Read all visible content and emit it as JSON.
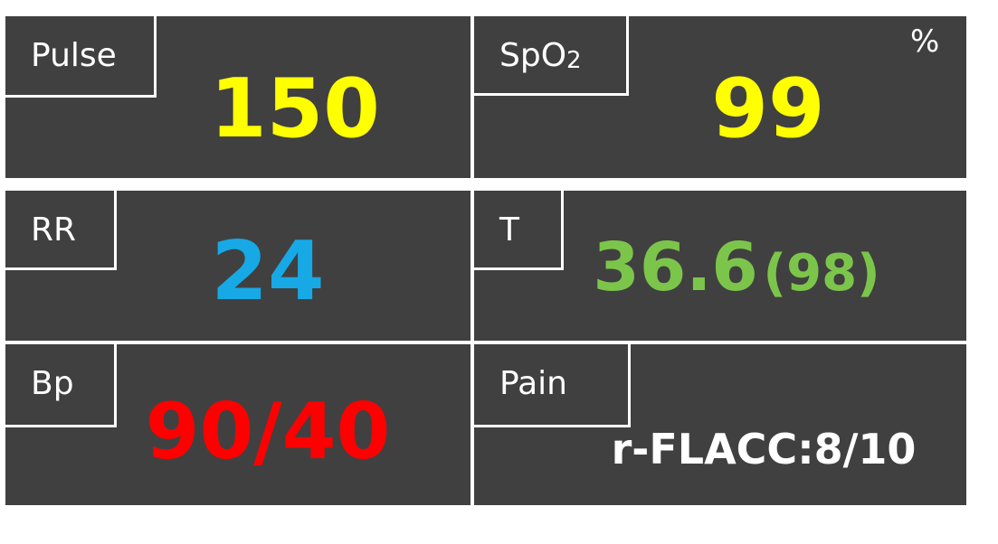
{
  "colors": {
    "panel_bg": "#404040",
    "border": "#ffffff",
    "pulse": "#ffff00",
    "spo2": "#ffff00",
    "rr": "#17a9e6",
    "temp": "#7cc54b",
    "bp": "#ff0000",
    "pain": "#ffffff"
  },
  "pulse": {
    "label": "Pulse",
    "value": "150"
  },
  "spo2": {
    "label_main": "SpO",
    "label_sub": "2",
    "value": "99",
    "unit": "%"
  },
  "rr": {
    "label": "RR",
    "value": "24"
  },
  "temp": {
    "label": "T",
    "value": "36.6",
    "value_f": "(98)"
  },
  "bp": {
    "label": "Bp",
    "value": "90/40"
  },
  "pain": {
    "label": "Pain",
    "value": "r-FLACC:8/10"
  }
}
